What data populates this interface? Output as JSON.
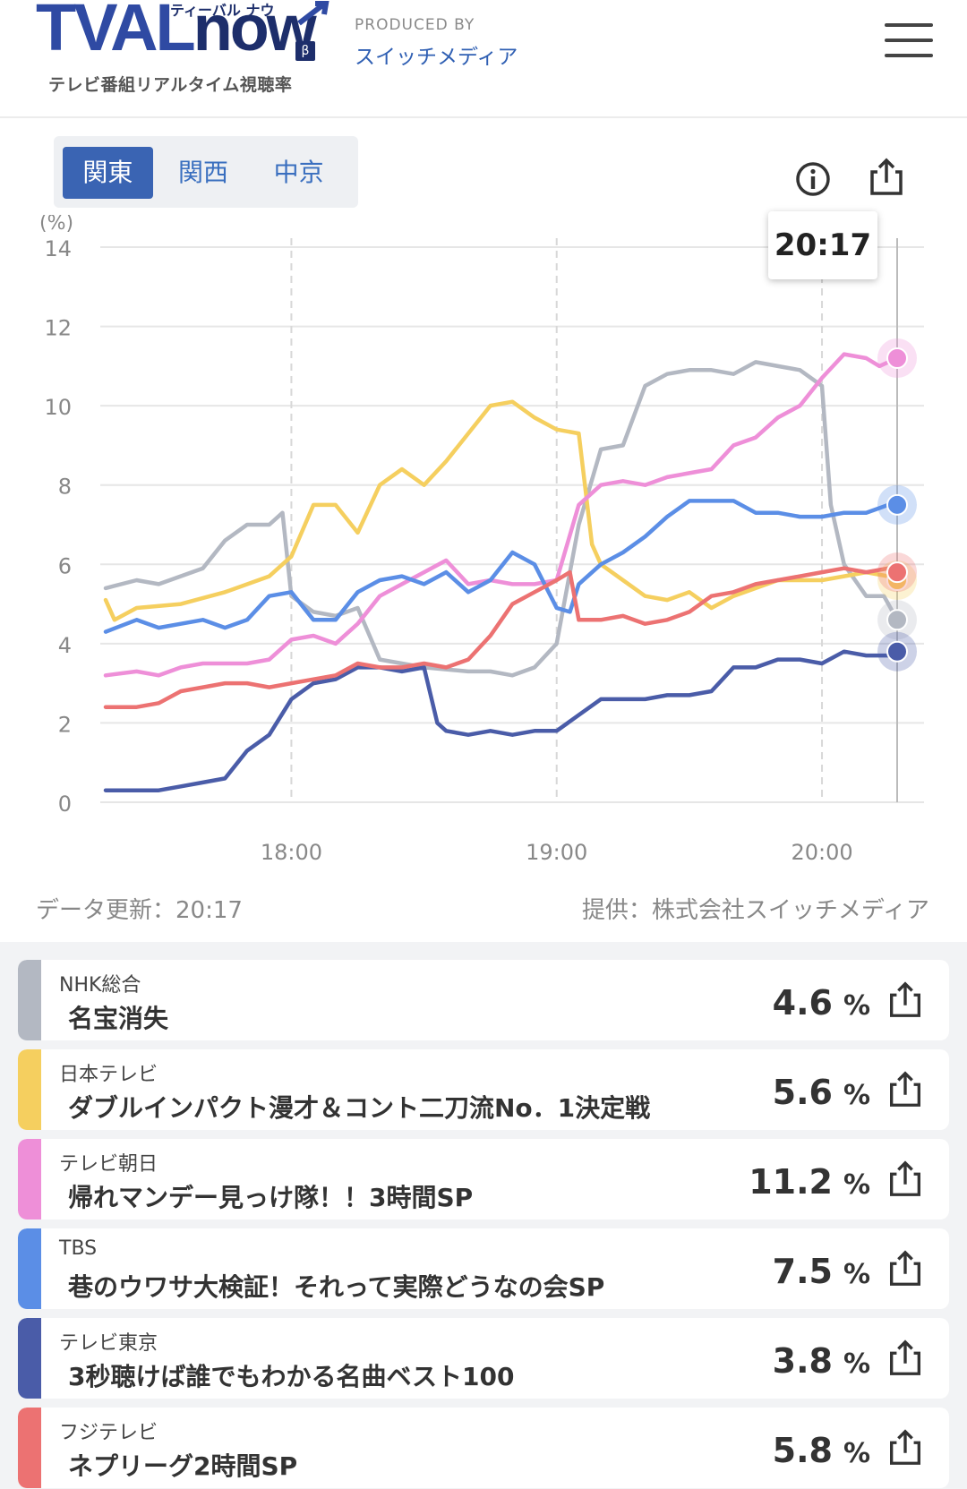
{
  "header": {
    "logo_text_a": "TVAL",
    "logo_text_b": "now",
    "logo_kana": "ティーバル ナウ",
    "logo_beta": "β",
    "logo_sub": "テレビ番組リアルタイム視聴率",
    "produced_by": "PRODUCED BY",
    "producer": "スイッチメディア",
    "menu_icon": "hamburger-menu-icon"
  },
  "tabs": [
    {
      "label": "関東",
      "active": true
    },
    {
      "label": "関西",
      "active": false
    },
    {
      "label": "中京",
      "active": false
    }
  ],
  "toolbar": {
    "info_icon": "info-icon",
    "share_icon": "share-icon"
  },
  "tooltip": {
    "time": "20:17"
  },
  "footer": {
    "updated": "データ更新：20:17",
    "source": "提供：株式会社スイッチメディア"
  },
  "chart_data": {
    "type": "line",
    "ylabel": "(%)",
    "ylim": [
      0,
      14
    ],
    "yticks": [
      "0",
      "2",
      "4",
      "6",
      "8",
      "10",
      "12",
      "14"
    ],
    "xticks": [
      "18:00",
      "19:00",
      "20:00"
    ],
    "xlim": [
      "17:18",
      "20:17"
    ],
    "grid": true,
    "series": [
      {
        "name": "NHK総合",
        "color": "#b3b8c2",
        "points": [
          [
            "17:18",
            5.4
          ],
          [
            "17:25",
            5.6
          ],
          [
            "17:30",
            5.5
          ],
          [
            "17:40",
            5.9
          ],
          [
            "17:45",
            6.6
          ],
          [
            "17:50",
            7.0
          ],
          [
            "17:55",
            7.0
          ],
          [
            "17:58",
            7.3
          ],
          [
            "18:00",
            5.2
          ],
          [
            "18:05",
            4.8
          ],
          [
            "18:10",
            4.7
          ],
          [
            "18:15",
            4.9
          ],
          [
            "18:20",
            3.6
          ],
          [
            "18:30",
            3.4
          ],
          [
            "18:40",
            3.3
          ],
          [
            "18:45",
            3.3
          ],
          [
            "18:50",
            3.2
          ],
          [
            "18:55",
            3.4
          ],
          [
            "19:00",
            4.0
          ],
          [
            "19:05",
            7.0
          ],
          [
            "19:10",
            8.9
          ],
          [
            "19:15",
            9.0
          ],
          [
            "19:20",
            10.5
          ],
          [
            "19:25",
            10.8
          ],
          [
            "19:30",
            10.9
          ],
          [
            "19:35",
            10.9
          ],
          [
            "19:40",
            10.8
          ],
          [
            "19:45",
            11.1
          ],
          [
            "19:50",
            11.0
          ],
          [
            "19:55",
            10.9
          ],
          [
            "20:00",
            10.5
          ],
          [
            "20:02",
            7.5
          ],
          [
            "20:05",
            6.0
          ],
          [
            "20:10",
            5.2
          ],
          [
            "20:14",
            5.2
          ],
          [
            "20:17",
            4.6
          ]
        ]
      },
      {
        "name": "日本テレビ",
        "color": "#f5cf5f",
        "points": [
          [
            "17:18",
            5.1
          ],
          [
            "17:20",
            4.6
          ],
          [
            "17:25",
            4.9
          ],
          [
            "17:35",
            5.0
          ],
          [
            "17:45",
            5.3
          ],
          [
            "17:55",
            5.7
          ],
          [
            "18:00",
            6.2
          ],
          [
            "18:05",
            7.5
          ],
          [
            "18:10",
            7.5
          ],
          [
            "18:15",
            6.8
          ],
          [
            "18:20",
            8.0
          ],
          [
            "18:25",
            8.4
          ],
          [
            "18:30",
            8.0
          ],
          [
            "18:35",
            8.6
          ],
          [
            "18:40",
            9.3
          ],
          [
            "18:45",
            10.0
          ],
          [
            "18:50",
            10.1
          ],
          [
            "18:55",
            9.7
          ],
          [
            "19:00",
            9.4
          ],
          [
            "19:05",
            9.3
          ],
          [
            "19:08",
            6.5
          ],
          [
            "19:10",
            6.0
          ],
          [
            "19:15",
            5.6
          ],
          [
            "19:20",
            5.2
          ],
          [
            "19:25",
            5.1
          ],
          [
            "19:30",
            5.3
          ],
          [
            "19:35",
            4.9
          ],
          [
            "19:40",
            5.2
          ],
          [
            "19:45",
            5.4
          ],
          [
            "19:50",
            5.6
          ],
          [
            "19:55",
            5.6
          ],
          [
            "20:00",
            5.6
          ],
          [
            "20:05",
            5.7
          ],
          [
            "20:10",
            5.8
          ],
          [
            "20:15",
            5.7
          ],
          [
            "20:17",
            5.6
          ]
        ]
      },
      {
        "name": "テレビ朝日",
        "color": "#ee8fd8",
        "points": [
          [
            "17:18",
            3.2
          ],
          [
            "17:25",
            3.3
          ],
          [
            "17:30",
            3.2
          ],
          [
            "17:35",
            3.4
          ],
          [
            "17:40",
            3.5
          ],
          [
            "17:45",
            3.5
          ],
          [
            "17:50",
            3.5
          ],
          [
            "17:55",
            3.6
          ],
          [
            "18:00",
            4.1
          ],
          [
            "18:05",
            4.2
          ],
          [
            "18:10",
            4.0
          ],
          [
            "18:15",
            4.5
          ],
          [
            "18:20",
            5.2
          ],
          [
            "18:25",
            5.5
          ],
          [
            "18:30",
            5.8
          ],
          [
            "18:35",
            6.1
          ],
          [
            "18:40",
            5.5
          ],
          [
            "18:45",
            5.6
          ],
          [
            "18:50",
            5.5
          ],
          [
            "18:55",
            5.5
          ],
          [
            "19:00",
            5.6
          ],
          [
            "19:05",
            7.5
          ],
          [
            "19:10",
            8.0
          ],
          [
            "19:15",
            8.1
          ],
          [
            "19:20",
            8.0
          ],
          [
            "19:25",
            8.2
          ],
          [
            "19:30",
            8.3
          ],
          [
            "19:35",
            8.4
          ],
          [
            "19:40",
            9.0
          ],
          [
            "19:45",
            9.2
          ],
          [
            "19:50",
            9.7
          ],
          [
            "19:55",
            10.0
          ],
          [
            "20:00",
            10.7
          ],
          [
            "20:05",
            11.3
          ],
          [
            "20:10",
            11.2
          ],
          [
            "20:13",
            11.0
          ],
          [
            "20:17",
            11.2
          ]
        ]
      },
      {
        "name": "TBS",
        "color": "#5b8ee6",
        "points": [
          [
            "17:18",
            4.3
          ],
          [
            "17:25",
            4.6
          ],
          [
            "17:30",
            4.4
          ],
          [
            "17:35",
            4.5
          ],
          [
            "17:40",
            4.6
          ],
          [
            "17:45",
            4.4
          ],
          [
            "17:50",
            4.6
          ],
          [
            "17:55",
            5.2
          ],
          [
            "18:00",
            5.3
          ],
          [
            "18:05",
            4.6
          ],
          [
            "18:10",
            4.6
          ],
          [
            "18:15",
            5.3
          ],
          [
            "18:20",
            5.6
          ],
          [
            "18:25",
            5.7
          ],
          [
            "18:30",
            5.5
          ],
          [
            "18:35",
            5.8
          ],
          [
            "18:40",
            5.3
          ],
          [
            "18:45",
            5.6
          ],
          [
            "18:50",
            6.3
          ],
          [
            "18:55",
            6.0
          ],
          [
            "19:00",
            4.9
          ],
          [
            "19:03",
            4.8
          ],
          [
            "19:05",
            5.5
          ],
          [
            "19:10",
            6.0
          ],
          [
            "19:15",
            6.3
          ],
          [
            "19:20",
            6.7
          ],
          [
            "19:25",
            7.2
          ],
          [
            "19:30",
            7.6
          ],
          [
            "19:35",
            7.6
          ],
          [
            "19:40",
            7.6
          ],
          [
            "19:45",
            7.3
          ],
          [
            "19:50",
            7.3
          ],
          [
            "19:55",
            7.2
          ],
          [
            "20:00",
            7.2
          ],
          [
            "20:05",
            7.3
          ],
          [
            "20:10",
            7.3
          ],
          [
            "20:15",
            7.5
          ],
          [
            "20:17",
            7.5
          ]
        ]
      },
      {
        "name": "テレビ東京",
        "color": "#4a5ca8",
        "points": [
          [
            "17:18",
            0.3
          ],
          [
            "17:25",
            0.3
          ],
          [
            "17:30",
            0.3
          ],
          [
            "17:35",
            0.4
          ],
          [
            "17:40",
            0.5
          ],
          [
            "17:45",
            0.6
          ],
          [
            "17:50",
            1.3
          ],
          [
            "17:55",
            1.7
          ],
          [
            "18:00",
            2.6
          ],
          [
            "18:05",
            3.0
          ],
          [
            "18:10",
            3.1
          ],
          [
            "18:15",
            3.4
          ],
          [
            "18:20",
            3.4
          ],
          [
            "18:25",
            3.3
          ],
          [
            "18:30",
            3.4
          ],
          [
            "18:33",
            2.0
          ],
          [
            "18:35",
            1.8
          ],
          [
            "18:40",
            1.7
          ],
          [
            "18:45",
            1.8
          ],
          [
            "18:50",
            1.7
          ],
          [
            "18:55",
            1.8
          ],
          [
            "19:00",
            1.8
          ],
          [
            "19:05",
            2.2
          ],
          [
            "19:10",
            2.6
          ],
          [
            "19:15",
            2.6
          ],
          [
            "19:20",
            2.6
          ],
          [
            "19:25",
            2.7
          ],
          [
            "19:30",
            2.7
          ],
          [
            "19:35",
            2.8
          ],
          [
            "19:40",
            3.4
          ],
          [
            "19:45",
            3.4
          ],
          [
            "19:50",
            3.6
          ],
          [
            "19:55",
            3.6
          ],
          [
            "20:00",
            3.5
          ],
          [
            "20:05",
            3.8
          ],
          [
            "20:10",
            3.7
          ],
          [
            "20:15",
            3.7
          ],
          [
            "20:17",
            3.8
          ]
        ]
      },
      {
        "name": "フジテレビ",
        "color": "#ec7272",
        "points": [
          [
            "17:18",
            2.4
          ],
          [
            "17:25",
            2.4
          ],
          [
            "17:30",
            2.5
          ],
          [
            "17:35",
            2.8
          ],
          [
            "17:40",
            2.9
          ],
          [
            "17:45",
            3.0
          ],
          [
            "17:50",
            3.0
          ],
          [
            "17:55",
            2.9
          ],
          [
            "18:00",
            3.0
          ],
          [
            "18:05",
            3.1
          ],
          [
            "18:10",
            3.2
          ],
          [
            "18:15",
            3.5
          ],
          [
            "18:20",
            3.4
          ],
          [
            "18:25",
            3.4
          ],
          [
            "18:30",
            3.5
          ],
          [
            "18:35",
            3.4
          ],
          [
            "18:40",
            3.6
          ],
          [
            "18:45",
            4.2
          ],
          [
            "18:50",
            5.0
          ],
          [
            "18:55",
            5.3
          ],
          [
            "19:00",
            5.6
          ],
          [
            "19:03",
            5.8
          ],
          [
            "19:05",
            4.6
          ],
          [
            "19:10",
            4.6
          ],
          [
            "19:15",
            4.7
          ],
          [
            "19:20",
            4.5
          ],
          [
            "19:25",
            4.6
          ],
          [
            "19:30",
            4.8
          ],
          [
            "19:35",
            5.2
          ],
          [
            "19:40",
            5.3
          ],
          [
            "19:45",
            5.5
          ],
          [
            "19:50",
            5.6
          ],
          [
            "19:55",
            5.7
          ],
          [
            "20:00",
            5.8
          ],
          [
            "20:05",
            5.9
          ],
          [
            "20:10",
            5.8
          ],
          [
            "20:15",
            5.9
          ],
          [
            "20:17",
            5.8
          ]
        ]
      }
    ]
  },
  "channels": [
    {
      "station": "NHK総合",
      "program": "名宝消失",
      "value": "4.6",
      "unit": "%",
      "color": "#b3b8c2"
    },
    {
      "station": "日本テレビ",
      "program": "ダブルインパクト漫才＆コント二刀流No．1決定戦",
      "value": "5.6",
      "unit": "%",
      "color": "#f5cf5f"
    },
    {
      "station": "テレビ朝日",
      "program": "帰れマンデー見っけ隊！！3時間SP",
      "value": "11.2",
      "unit": "%",
      "color": "#ee8fd8"
    },
    {
      "station": "TBS",
      "program": "巷のウワサ大検証！それって実際どうなの会SP",
      "value": "7.5",
      "unit": "%",
      "color": "#5b8ee6"
    },
    {
      "station": "テレビ東京",
      "program": "3秒聴けば誰でもわかる名曲ベスト100",
      "value": "3.8",
      "unit": "%",
      "color": "#4a5ca8"
    },
    {
      "station": "フジテレビ",
      "program": "ネプリーグ2時間SP",
      "value": "5.8",
      "unit": "%",
      "color": "#ec7272"
    }
  ]
}
